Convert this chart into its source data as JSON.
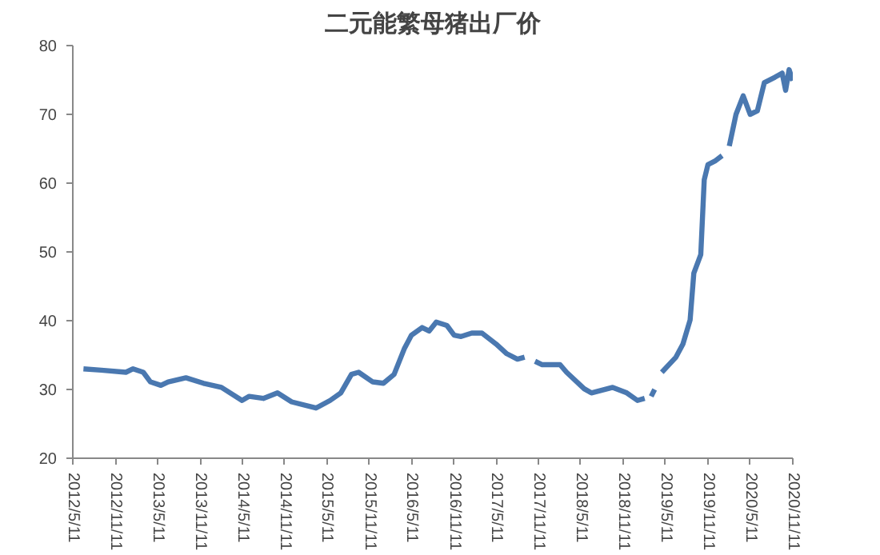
{
  "chart_data": {
    "type": "line",
    "title": "二元能繁母猪出厂价",
    "x": [
      "2012-06-26",
      "2012-09-11",
      "2012-12-26",
      "2013-01-26",
      "2013-03-11",
      "2013-04-11",
      "2013-05-26",
      "2013-06-26",
      "2013-09-11",
      "2013-11-26",
      "2014-02-11",
      "2014-05-11",
      "2014-06-11",
      "2014-08-11",
      "2014-10-11",
      "2014-12-11",
      "2015-03-26",
      "2015-05-26",
      "2015-07-11",
      "2015-08-26",
      "2015-09-26",
      "2015-11-26",
      "2016-01-11",
      "2016-02-26",
      "2016-04-11",
      "2016-05-11",
      "2016-06-26",
      "2016-07-26",
      "2016-08-26",
      "2016-10-11",
      "2016-11-11",
      "2016-12-11",
      "2017-01-26",
      "2017-03-11",
      "2017-05-11",
      "2017-06-26",
      "2017-08-11",
      "2017-09-11",
      "2017-09-26",
      "2017-10-26",
      "2017-11-26",
      "2018-02-11",
      "2018-03-11",
      "2018-05-26",
      "2018-06-26",
      "2018-09-26",
      "2018-11-26",
      "2019-01-11",
      "2019-02-11",
      "2019-02-26",
      "2019-03-11",
      "2019-03-26",
      "2019-04-11",
      "2019-04-26",
      "2019-06-26",
      "2019-07-26",
      "2019-08-26",
      "2019-09-11",
      "2019-10-11",
      "2019-10-26",
      "2019-11-11",
      "2019-12-11",
      "2020-01-11",
      "2020-01-26",
      "2020-02-11",
      "2020-03-11",
      "2020-04-11",
      "2020-05-11",
      "2020-06-11",
      "2020-07-11",
      "2020-08-26",
      "2020-09-26",
      "2020-10-11",
      "2020-10-26",
      "2020-11-11"
    ],
    "series": [
      {
        "color": "#4a78b0",
        "values": [
          33.0,
          32.8,
          32.5,
          33.0,
          32.5,
          31.1,
          30.6,
          31.1,
          31.7,
          30.9,
          30.3,
          28.4,
          29.0,
          28.7,
          29.5,
          28.2,
          27.3,
          28.4,
          29.5,
          32.2,
          32.5,
          31.1,
          30.9,
          32.2,
          36.0,
          37.9,
          39.0,
          38.5,
          39.8,
          39.3,
          37.9,
          37.7,
          38.2,
          38.2,
          36.6,
          35.2,
          34.4,
          34.7,
          null,
          34.1,
          33.6,
          33.6,
          32.5,
          30.1,
          29.5,
          30.3,
          29.5,
          28.4,
          28.7,
          null,
          29.0,
          30.0,
          null,
          32.5,
          34.7,
          36.6,
          40.1,
          46.9,
          49.6,
          60.5,
          62.7,
          63.2,
          64.0,
          null,
          65.4,
          70.0,
          72.7,
          70.0,
          70.5,
          74.6,
          75.4,
          76.0,
          73.5,
          76.5,
          74.9
        ]
      }
    ],
    "xlim": [
      "2012-05-11",
      "2020-11-11"
    ],
    "xticks": [
      {
        "value": "2012-05-11",
        "label": "2012/5/11"
      },
      {
        "value": "2012-11-11",
        "label": "2012/11/11"
      },
      {
        "value": "2013-05-11",
        "label": "2013/5/11"
      },
      {
        "value": "2013-11-11",
        "label": "2013/11/11"
      },
      {
        "value": "2014-05-11",
        "label": "2014/5/11"
      },
      {
        "value": "2014-11-11",
        "label": "2014/11/11"
      },
      {
        "value": "2015-05-11",
        "label": "2015/5/11"
      },
      {
        "value": "2015-11-11",
        "label": "2015/11/11"
      },
      {
        "value": "2016-05-11",
        "label": "2016/5/11"
      },
      {
        "value": "2016-11-11",
        "label": "2016/11/11"
      },
      {
        "value": "2017-05-11",
        "label": "2017/5/11"
      },
      {
        "value": "2017-11-11",
        "label": "2017/11/11"
      },
      {
        "value": "2018-05-11",
        "label": "2018/5/11"
      },
      {
        "value": "2018-11-11",
        "label": "2018/11/11"
      },
      {
        "value": "2019-05-11",
        "label": "2019/5/11"
      },
      {
        "value": "2019-11-11",
        "label": "2019/11/11"
      },
      {
        "value": "2020-05-11",
        "label": "2020/5/11"
      },
      {
        "value": "2020-11-11",
        "label": "2020/11/11"
      }
    ],
    "ylim": [
      20,
      80
    ],
    "yticks": [
      20,
      30,
      40,
      50,
      60,
      70,
      80
    ],
    "grid": false,
    "marker": "none",
    "line_style": "solid"
  }
}
